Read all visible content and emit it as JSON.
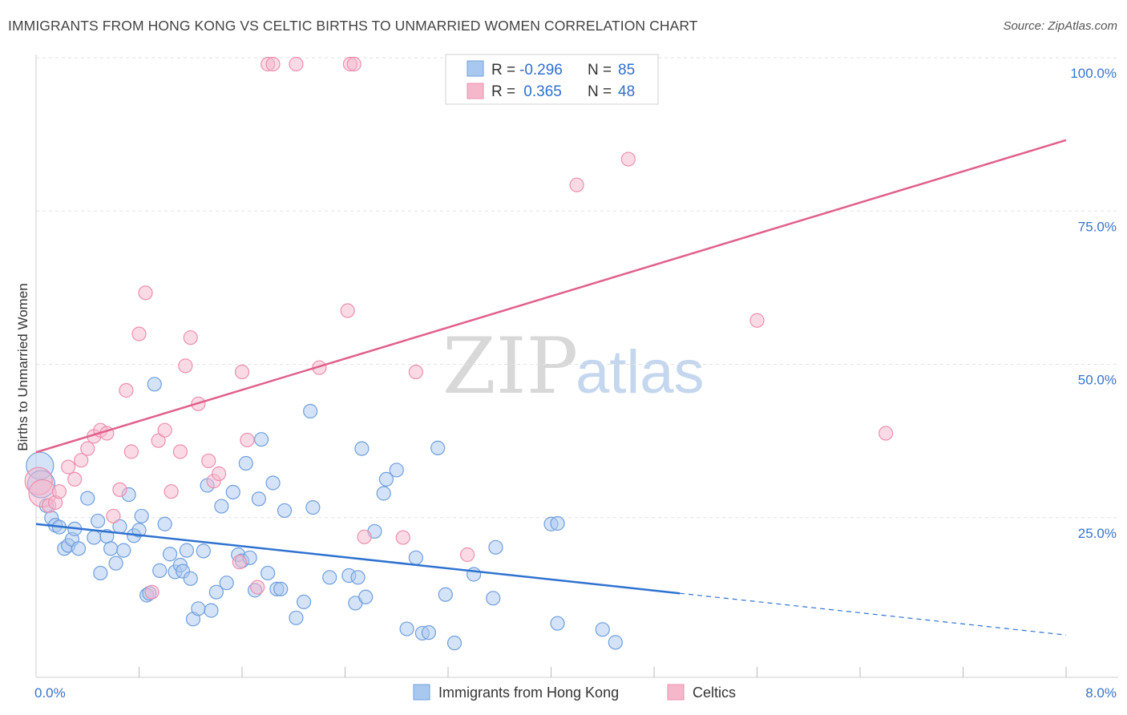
{
  "header": {
    "title": "IMMIGRANTS FROM HONG KONG VS CELTIC BIRTHS TO UNMARRIED WOMEN CORRELATION CHART",
    "source": "Source: ZipAtlas.com"
  },
  "watermark": {
    "part1": "ZIP",
    "part2": "atlas"
  },
  "legend_box": {
    "rows": [
      {
        "r_label": "R = ",
        "r_value": "-0.296",
        "n_label": "N = ",
        "n_value": "85",
        "color": "#a9c8f0"
      },
      {
        "r_label": "R = ",
        "r_value": " 0.365",
        "n_label": "N = ",
        "n_value": "48",
        "color": "#f6b7cb"
      }
    ]
  },
  "chart_data": {
    "type": "scatter",
    "title": "IMMIGRANTS FROM HONG KONG VS CELTIC BIRTHS TO UNMARRIED WOMEN CORRELATION CHART",
    "xlabel": "",
    "ylabel": "Births to Unmarried Women",
    "xlim": [
      0,
      8
    ],
    "ylim": [
      0,
      100
    ],
    "x_tick_labels": [
      "0.0%",
      "8.0%"
    ],
    "y_tick_labels": [
      "25.0%",
      "50.0%",
      "75.0%",
      "100.0%"
    ],
    "y_ticks": [
      25,
      50,
      75,
      100
    ],
    "grid": true,
    "legend_position": "bottom-center",
    "series": [
      {
        "name": "Immigrants from Hong Kong",
        "color": "#a9c8f0",
        "edge": "#6f9fdc",
        "line_color": "#2f72d0",
        "trend": {
          "x0": 0,
          "y0": 25.0,
          "x1": 5.0,
          "y1": 13.7,
          "dashed_to_x": 8.0,
          "dashed_to_y": 6.9
        },
        "points": [
          [
            0.03,
            34.5
          ],
          [
            0.04,
            31.5
          ],
          [
            0.08,
            28.0
          ],
          [
            0.12,
            26.0
          ],
          [
            0.15,
            24.8
          ],
          [
            0.18,
            24.5
          ],
          [
            0.22,
            21.0
          ],
          [
            0.25,
            21.5
          ],
          [
            0.28,
            22.5
          ],
          [
            0.3,
            24.2
          ],
          [
            0.33,
            21.0
          ],
          [
            0.4,
            29.2
          ],
          [
            0.45,
            22.8
          ],
          [
            0.48,
            25.5
          ],
          [
            0.5,
            17.0
          ],
          [
            0.55,
            23.0
          ],
          [
            0.58,
            21.0
          ],
          [
            0.62,
            18.6
          ],
          [
            0.65,
            24.6
          ],
          [
            0.68,
            20.7
          ],
          [
            0.72,
            29.8
          ],
          [
            0.76,
            23.1
          ],
          [
            0.8,
            24.0
          ],
          [
            0.82,
            26.3
          ],
          [
            0.86,
            13.4
          ],
          [
            0.88,
            13.7
          ],
          [
            0.92,
            47.8
          ],
          [
            0.96,
            17.4
          ],
          [
            1.0,
            25.0
          ],
          [
            1.04,
            20.1
          ],
          [
            1.08,
            17.2
          ],
          [
            1.12,
            18.3
          ],
          [
            1.14,
            17.3
          ],
          [
            1.17,
            20.7
          ],
          [
            1.2,
            16.1
          ],
          [
            1.22,
            9.5
          ],
          [
            1.26,
            11.2
          ],
          [
            1.3,
            20.6
          ],
          [
            1.33,
            31.3
          ],
          [
            1.36,
            10.9
          ],
          [
            1.4,
            13.9
          ],
          [
            1.44,
            27.9
          ],
          [
            1.48,
            15.4
          ],
          [
            1.53,
            30.2
          ],
          [
            1.57,
            20.0
          ],
          [
            1.6,
            19.0
          ],
          [
            1.63,
            34.9
          ],
          [
            1.66,
            19.5
          ],
          [
            1.7,
            14.2
          ],
          [
            1.73,
            29.1
          ],
          [
            1.75,
            38.8
          ],
          [
            1.8,
            17.0
          ],
          [
            1.84,
            31.7
          ],
          [
            1.87,
            14.4
          ],
          [
            1.9,
            14.4
          ],
          [
            1.93,
            27.2
          ],
          [
            2.02,
            9.7
          ],
          [
            2.08,
            12.3
          ],
          [
            2.13,
            43.4
          ],
          [
            2.15,
            27.7
          ],
          [
            2.28,
            16.3
          ],
          [
            2.43,
            16.6
          ],
          [
            2.48,
            12.1
          ],
          [
            2.5,
            16.3
          ],
          [
            2.53,
            37.3
          ],
          [
            2.56,
            13.1
          ],
          [
            2.63,
            23.8
          ],
          [
            2.7,
            30.0
          ],
          [
            2.72,
            32.3
          ],
          [
            2.8,
            33.8
          ],
          [
            2.88,
            7.9
          ],
          [
            2.95,
            19.5
          ],
          [
            3.0,
            7.2
          ],
          [
            3.05,
            7.3
          ],
          [
            3.12,
            37.4
          ],
          [
            3.18,
            13.5
          ],
          [
            3.25,
            5.6
          ],
          [
            3.4,
            16.8
          ],
          [
            3.55,
            12.9
          ],
          [
            3.57,
            21.2
          ],
          [
            4.0,
            25.0
          ],
          [
            4.05,
            25.1
          ],
          [
            4.05,
            8.8
          ],
          [
            4.4,
            7.8
          ],
          [
            4.5,
            5.7
          ]
        ]
      },
      {
        "name": "Celtics",
        "color": "#f6b7cb",
        "edge": "#ec8fae",
        "line_color": "#e0608c",
        "trend": {
          "x0": 0,
          "y0": 36.7,
          "x1": 8.0,
          "y1": 87.6
        },
        "points": [
          [
            0.02,
            32.0
          ],
          [
            0.05,
            30.0
          ],
          [
            0.1,
            28.0
          ],
          [
            0.15,
            28.5
          ],
          [
            0.18,
            30.3
          ],
          [
            0.25,
            34.3
          ],
          [
            0.3,
            32.3
          ],
          [
            0.35,
            35.4
          ],
          [
            0.4,
            37.3
          ],
          [
            0.45,
            39.3
          ],
          [
            0.5,
            40.3
          ],
          [
            0.55,
            39.8
          ],
          [
            0.6,
            26.3
          ],
          [
            0.65,
            30.6
          ],
          [
            0.7,
            46.8
          ],
          [
            0.74,
            36.8
          ],
          [
            0.8,
            56.0
          ],
          [
            0.85,
            62.7
          ],
          [
            0.9,
            13.9
          ],
          [
            0.95,
            38.6
          ],
          [
            1.0,
            40.3
          ],
          [
            1.05,
            30.3
          ],
          [
            1.12,
            36.8
          ],
          [
            1.16,
            50.8
          ],
          [
            1.2,
            55.4
          ],
          [
            1.26,
            44.6
          ],
          [
            1.34,
            35.3
          ],
          [
            1.38,
            32.0
          ],
          [
            1.42,
            33.2
          ],
          [
            1.58,
            18.8
          ],
          [
            1.6,
            49.8
          ],
          [
            1.64,
            38.7
          ],
          [
            1.72,
            14.7
          ],
          [
            1.8,
            100.0
          ],
          [
            1.84,
            100.0
          ],
          [
            2.02,
            100.0
          ],
          [
            2.2,
            50.5
          ],
          [
            2.42,
            59.8
          ],
          [
            2.44,
            100.0
          ],
          [
            2.47,
            100.0
          ],
          [
            2.55,
            22.9
          ],
          [
            2.85,
            22.8
          ],
          [
            2.95,
            49.8
          ],
          [
            3.35,
            20.0
          ],
          [
            4.2,
            80.3
          ],
          [
            4.6,
            84.5
          ],
          [
            5.6,
            58.2
          ],
          [
            6.6,
            39.8
          ]
        ]
      }
    ]
  },
  "bottom_legend": {
    "items": [
      {
        "label": "Immigrants from Hong Kong",
        "color": "#a9c8f0",
        "edge": "#6f9fdc"
      },
      {
        "label": "Celtics",
        "color": "#f6b7cb",
        "edge": "#ec8fae"
      }
    ]
  }
}
